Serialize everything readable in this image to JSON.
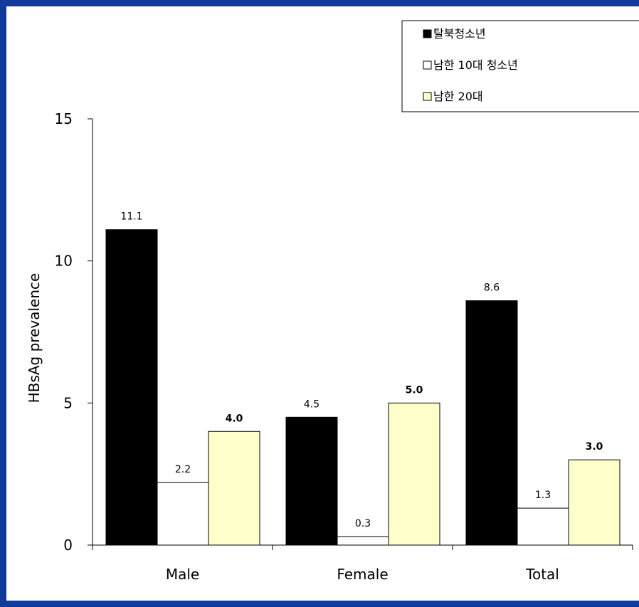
{
  "chart_data": {
    "type": "bar",
    "categories": [
      "Male",
      "Female",
      "Total"
    ],
    "series": [
      {
        "name": "탈북청소년",
        "values": [
          11.1,
          4.5,
          8.6
        ],
        "labels": [
          "11.1",
          "4.5",
          "8.6"
        ],
        "color": "#000000"
      },
      {
        "name": "남한 10대 청소년",
        "values": [
          2.2,
          0.3,
          1.3
        ],
        "labels": [
          "2.2",
          "0.3",
          "1.3"
        ],
        "color": "#ffffff"
      },
      {
        "name": "남한 20대",
        "values": [
          4.0,
          5.0,
          3.0
        ],
        "labels": [
          "4.0",
          "5.0",
          "3.0"
        ],
        "color": "#ffffcc"
      }
    ],
    "ylabel": "HBsAg prevalence",
    "xlabel": "",
    "ylim": [
      0,
      15
    ],
    "yticks": [
      0,
      5,
      10,
      15
    ],
    "grid": false,
    "legend_position": "top-right"
  },
  "colors": {
    "background": "#103a9c",
    "panel": "#ffffff",
    "series_1": "#000000",
    "series_2": "#ffffff",
    "series_3": "#ffffcc"
  }
}
